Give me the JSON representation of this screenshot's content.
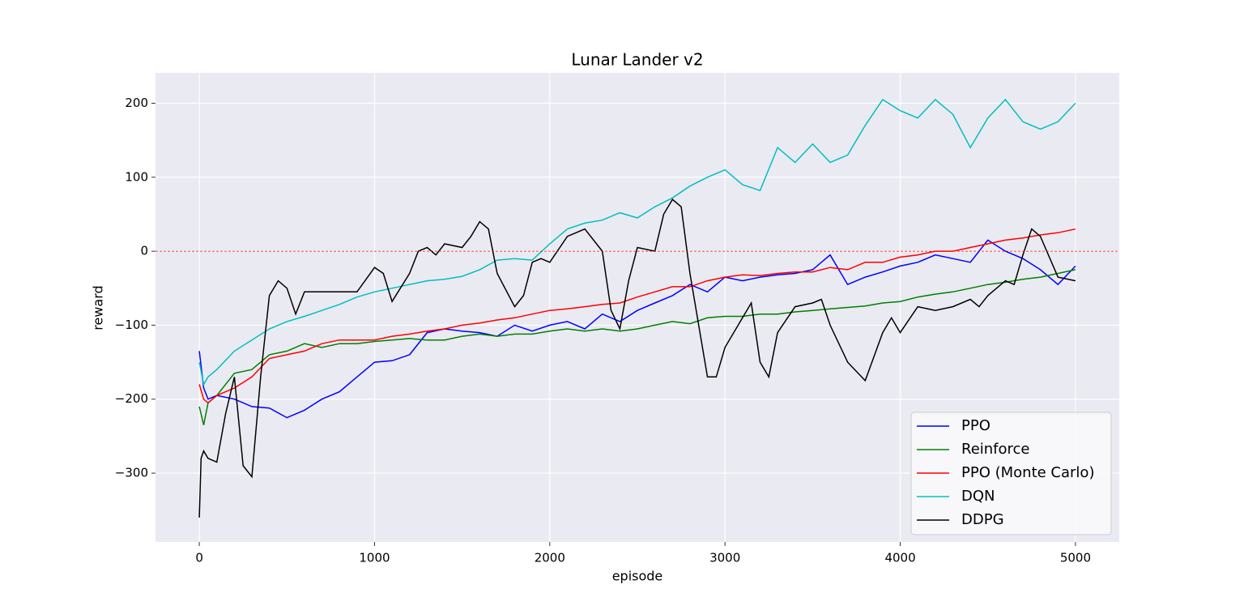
{
  "chart_data": {
    "type": "line",
    "title": "Lunar Lander v2",
    "x_label": "episode",
    "y_label": "reward",
    "xlim": [
      -250,
      5250
    ],
    "ylim": [
      -393,
      241
    ],
    "xticks": [
      0,
      1000,
      2000,
      3000,
      4000,
      5000
    ],
    "yticks": [
      {
        "value": -300,
        "label": "−300"
      },
      {
        "value": -200,
        "label": "−200"
      },
      {
        "value": -100,
        "label": "−100"
      },
      0,
      100,
      200
    ],
    "grid": true,
    "legend": "lower right",
    "reference_line": {
      "y": 0,
      "color": "#ff0000"
    },
    "series": [
      {
        "name": "PPO",
        "color": "#0000ff",
        "x": [
          0,
          25,
          50,
          100,
          200,
          300,
          400,
          500,
          600,
          700,
          800,
          900,
          1000,
          1100,
          1200,
          1300,
          1400,
          1500,
          1600,
          1700,
          1800,
          1900,
          2000,
          2100,
          2200,
          2300,
          2400,
          2500,
          2600,
          2700,
          2800,
          2900,
          3000,
          3100,
          3200,
          3300,
          3400,
          3500,
          3600,
          3700,
          3800,
          3900,
          4000,
          4100,
          4200,
          4300,
          4400,
          4500,
          4600,
          4700,
          4800,
          4900,
          5000
        ],
        "values": [
          -135,
          -185,
          -200,
          -195,
          -200,
          -210,
          -212,
          -225,
          -215,
          -200,
          -190,
          -170,
          -150,
          -148,
          -140,
          -110,
          -105,
          -108,
          -110,
          -115,
          -100,
          -108,
          -100,
          -95,
          -105,
          -85,
          -95,
          -80,
          -70,
          -60,
          -45,
          -55,
          -35,
          -40,
          -35,
          -32,
          -30,
          -25,
          -5,
          -45,
          -35,
          -28,
          -20,
          -15,
          -5,
          -10,
          -15,
          15,
          0,
          -10,
          -25,
          -45,
          -20
        ]
      },
      {
        "name": "Reinforce",
        "color": "#008000",
        "x": [
          0,
          25,
          50,
          100,
          200,
          300,
          400,
          500,
          600,
          700,
          800,
          900,
          1000,
          1100,
          1200,
          1300,
          1400,
          1500,
          1600,
          1700,
          1800,
          1900,
          2000,
          2100,
          2200,
          2300,
          2400,
          2500,
          2600,
          2700,
          2800,
          2900,
          3000,
          3100,
          3200,
          3300,
          3400,
          3500,
          3600,
          3700,
          3800,
          3900,
          4000,
          4100,
          4200,
          4300,
          4400,
          4500,
          4600,
          4700,
          4800,
          4900,
          5000
        ],
        "values": [
          -210,
          -235,
          -205,
          -195,
          -165,
          -160,
          -140,
          -135,
          -125,
          -130,
          -125,
          -125,
          -122,
          -120,
          -118,
          -120,
          -120,
          -115,
          -112,
          -115,
          -112,
          -112,
          -108,
          -105,
          -108,
          -105,
          -108,
          -105,
          -100,
          -95,
          -98,
          -90,
          -88,
          -88,
          -85,
          -85,
          -82,
          -80,
          -78,
          -76,
          -74,
          -70,
          -68,
          -62,
          -58,
          -55,
          -50,
          -45,
          -42,
          -38,
          -35,
          -30,
          -25
        ]
      },
      {
        "name": "PPO (Monte Carlo)",
        "color": "#ff0000",
        "x": [
          0,
          25,
          50,
          100,
          200,
          300,
          400,
          500,
          600,
          700,
          800,
          900,
          1000,
          1100,
          1200,
          1300,
          1400,
          1500,
          1600,
          1700,
          1800,
          1900,
          2000,
          2100,
          2200,
          2300,
          2400,
          2500,
          2600,
          2700,
          2800,
          2900,
          3000,
          3100,
          3200,
          3300,
          3400,
          3500,
          3600,
          3700,
          3800,
          3900,
          4000,
          4100,
          4200,
          4300,
          4400,
          4500,
          4600,
          4700,
          4800,
          4900,
          5000
        ],
        "values": [
          -180,
          -200,
          -205,
          -195,
          -185,
          -170,
          -145,
          -140,
          -135,
          -125,
          -120,
          -120,
          -120,
          -115,
          -112,
          -108,
          -105,
          -100,
          -97,
          -93,
          -90,
          -85,
          -80,
          -78,
          -75,
          -72,
          -70,
          -62,
          -55,
          -48,
          -48,
          -40,
          -35,
          -32,
          -33,
          -30,
          -28,
          -28,
          -22,
          -25,
          -15,
          -15,
          -8,
          -5,
          0,
          0,
          5,
          10,
          15,
          18,
          22,
          25,
          30
        ]
      },
      {
        "name": "DQN",
        "color": "#00bfbf",
        "x": [
          0,
          25,
          50,
          100,
          200,
          300,
          400,
          500,
          600,
          700,
          800,
          900,
          1000,
          1100,
          1200,
          1300,
          1400,
          1500,
          1600,
          1700,
          1800,
          1900,
          2000,
          2100,
          2200,
          2300,
          2400,
          2500,
          2600,
          2700,
          2800,
          2900,
          3000,
          3100,
          3200,
          3300,
          3400,
          3500,
          3600,
          3700,
          3800,
          3900,
          4000,
          4100,
          4200,
          4300,
          4400,
          4500,
          4600,
          4700,
          4800,
          4900,
          5000
        ],
        "values": [
          -150,
          -180,
          -170,
          -160,
          -135,
          -120,
          -105,
          -95,
          -88,
          -80,
          -72,
          -62,
          -55,
          -50,
          -45,
          -40,
          -38,
          -34,
          -25,
          -12,
          -10,
          -12,
          10,
          30,
          38,
          42,
          52,
          45,
          60,
          72,
          88,
          100,
          110,
          90,
          82,
          140,
          120,
          145,
          120,
          130,
          170,
          205,
          190,
          180,
          205,
          185,
          140,
          180,
          205,
          175,
          165,
          175,
          200
        ]
      },
      {
        "name": "DDPG",
        "color": "#000000",
        "x": [
          0,
          10,
          25,
          50,
          100,
          150,
          200,
          250,
          300,
          350,
          400,
          450,
          500,
          550,
          600,
          700,
          800,
          900,
          1000,
          1050,
          1100,
          1200,
          1250,
          1300,
          1350,
          1400,
          1500,
          1550,
          1600,
          1650,
          1700,
          1800,
          1850,
          1900,
          1950,
          2000,
          2100,
          2200,
          2300,
          2350,
          2400,
          2450,
          2500,
          2600,
          2650,
          2700,
          2750,
          2800,
          2900,
          2950,
          3000,
          3100,
          3150,
          3200,
          3250,
          3300,
          3400,
          3500,
          3550,
          3600,
          3700,
          3800,
          3900,
          3950,
          4000,
          4100,
          4200,
          4300,
          4400,
          4450,
          4500,
          4600,
          4650,
          4700,
          4750,
          4800,
          4900,
          5000
        ],
        "values": [
          -360,
          -280,
          -270,
          -280,
          -285,
          -220,
          -170,
          -290,
          -305,
          -170,
          -60,
          -40,
          -50,
          -85,
          -55,
          -55,
          -55,
          -55,
          -22,
          -30,
          -68,
          -30,
          0,
          5,
          -5,
          10,
          5,
          20,
          40,
          30,
          -30,
          -75,
          -60,
          -15,
          -10,
          -15,
          20,
          30,
          0,
          -80,
          -105,
          -40,
          5,
          0,
          50,
          70,
          60,
          -30,
          -170,
          -170,
          -130,
          -90,
          -70,
          -150,
          -170,
          -110,
          -75,
          -70,
          -65,
          -100,
          -150,
          -175,
          -110,
          -90,
          -110,
          -75,
          -80,
          -75,
          -65,
          -75,
          -60,
          -40,
          -45,
          -5,
          30,
          20,
          -35,
          -40
        ]
      }
    ]
  }
}
